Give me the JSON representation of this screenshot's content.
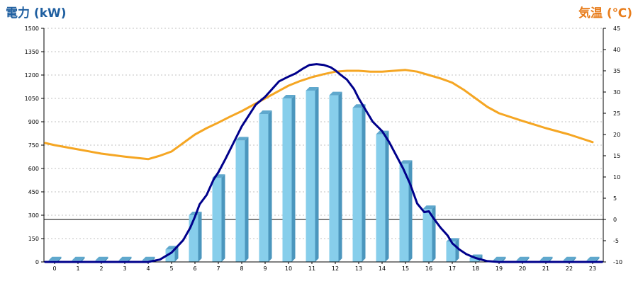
{
  "chart_data": {
    "type": "bar",
    "categories": [
      "0",
      "1",
      "2",
      "3",
      "4",
      "5",
      "6",
      "7",
      "8",
      "9",
      "10",
      "11",
      "12",
      "13",
      "14",
      "15",
      "16",
      "17",
      "18",
      "19",
      "20",
      "21",
      "22",
      "23"
    ],
    "series": [
      {
        "type": "bar",
        "axis": "left",
        "values": [
          10,
          10,
          10,
          10,
          10,
          80,
          300,
          540,
          780,
          950,
          1050,
          1100,
          1070,
          990,
          820,
          630,
          340,
          130,
          25,
          10,
          10,
          10,
          10,
          10
        ]
      },
      {
        "type": "line",
        "axis": "left",
        "x": [
          -0.4,
          4,
          4.5,
          5,
          5.5,
          5.8,
          6,
          6.2,
          6.5,
          6.8,
          7,
          7.3,
          7.6,
          8,
          8.3,
          8.6,
          9,
          9.3,
          9.6,
          10,
          10.3,
          10.6,
          10.9,
          11.2,
          11.5,
          11.8,
          12,
          12.2,
          12.5,
          12.8,
          13,
          13.3,
          13.6,
          14,
          14.3,
          14.6,
          14.9,
          15.2,
          15.5,
          15.8,
          16,
          16.2,
          16.5,
          16.8,
          17,
          17.3,
          17.6,
          18,
          18.5,
          19,
          23.4
        ],
        "y": [
          0,
          0,
          15,
          60,
          140,
          220,
          290,
          370,
          430,
          530,
          575,
          660,
          750,
          870,
          940,
          1010,
          1060,
          1110,
          1160,
          1190,
          1210,
          1240,
          1265,
          1270,
          1265,
          1250,
          1230,
          1205,
          1170,
          1110,
          1050,
          975,
          900,
          840,
          770,
          685,
          600,
          500,
          375,
          320,
          325,
          280,
          220,
          170,
          120,
          80,
          50,
          25,
          5,
          0,
          0
        ]
      },
      {
        "type": "line",
        "axis": "right",
        "x": [
          -0.4,
          0,
          1,
          2,
          3,
          3.5,
          4,
          4.5,
          5,
          5.5,
          6,
          6.5,
          7,
          7.5,
          8,
          8.5,
          9,
          9.5,
          10,
          10.5,
          11,
          11.5,
          12,
          12.5,
          13,
          13.5,
          14,
          14.5,
          15,
          15.5,
          16,
          16.5,
          17,
          17.5,
          18,
          18.5,
          19,
          20,
          21,
          22,
          23
        ],
        "y": [
          18,
          17.5,
          16.5,
          15.5,
          14.8,
          14.5,
          14.2,
          15,
          16,
          18,
          20,
          21.5,
          22.8,
          24.2,
          25.5,
          27,
          28.5,
          30,
          31.5,
          32.6,
          33.5,
          34.2,
          34.8,
          35,
          35,
          34.8,
          34.8,
          35,
          35.2,
          34.8,
          34,
          33.2,
          32.2,
          30.5,
          28.5,
          26.5,
          25,
          23.2,
          21.5,
          20,
          18.2
        ]
      }
    ],
    "ylabel_left": "電力 (kW)",
    "ylabel_right": "気温 (℃)",
    "ylim_left": [
      0,
      1500
    ],
    "yticks_left": [
      "0",
      "150",
      "300",
      "450",
      "600",
      "750",
      "900",
      "1050",
      "1200",
      "1350",
      "1500"
    ],
    "ylim_right": [
      -10,
      45
    ],
    "yticks_right": [
      "-10",
      "-5",
      "0",
      "5",
      "10",
      "15",
      "20",
      "25",
      "30",
      "35",
      "40",
      "45"
    ],
    "grid": "horizontal dotted",
    "colors": {
      "bar_front": "#87ceeb",
      "bar_side": "#4b96bd",
      "bar_top": "#5fa8cd",
      "power_line": "#00008b",
      "temp_line": "#f5a623",
      "left_label": "#1f5fa0",
      "right_label": "#e87c1a",
      "grid": "#c0c0c0"
    }
  }
}
